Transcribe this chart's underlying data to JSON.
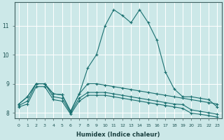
{
  "xlabel": "Humidex (Indice chaleur)",
  "background_color": "#cce8e8",
  "grid_color": "#b0d0d0",
  "line_color": "#1a7070",
  "xlim": [
    -0.5,
    23.5
  ],
  "ylim": [
    7.8,
    11.8
  ],
  "xticks": [
    0,
    1,
    2,
    3,
    4,
    5,
    6,
    7,
    8,
    9,
    10,
    11,
    12,
    13,
    14,
    15,
    16,
    17,
    18,
    19,
    20,
    21,
    22,
    23
  ],
  "yticks": [
    8,
    9,
    10,
    11
  ],
  "line1_x": [
    0,
    1,
    2,
    3,
    4,
    5,
    6,
    7,
    8,
    9,
    10,
    11,
    12,
    13,
    14,
    15,
    16,
    17,
    18,
    19,
    20,
    21,
    22,
    23
  ],
  "line1_y": [
    8.3,
    8.55,
    9.0,
    9.0,
    8.65,
    8.62,
    8.05,
    8.65,
    9.55,
    10.0,
    11.0,
    11.55,
    11.35,
    11.1,
    11.55,
    11.1,
    10.5,
    9.4,
    8.82,
    8.55,
    8.55,
    8.5,
    8.45,
    8.2
  ],
  "line2_x": [
    0,
    1,
    2,
    3,
    4,
    5,
    6,
    7,
    8,
    9,
    10,
    11,
    12,
    13,
    14,
    15,
    16,
    17,
    18,
    19,
    20,
    21,
    22,
    23
  ],
  "line2_y": [
    8.3,
    8.55,
    9.0,
    9.0,
    8.65,
    8.62,
    8.05,
    8.65,
    9.0,
    9.0,
    8.95,
    8.9,
    8.85,
    8.8,
    8.75,
    8.7,
    8.65,
    8.6,
    8.55,
    8.5,
    8.45,
    8.4,
    8.35,
    8.3
  ],
  "line3_x": [
    0,
    1,
    2,
    3,
    4,
    5,
    6,
    7,
    8,
    9,
    10,
    11,
    12,
    13,
    14,
    15,
    16,
    17,
    18,
    19,
    20,
    21,
    22,
    23
  ],
  "line3_y": [
    8.25,
    8.4,
    9.0,
    9.0,
    8.55,
    8.5,
    8.0,
    8.5,
    8.7,
    8.7,
    8.7,
    8.65,
    8.6,
    8.55,
    8.5,
    8.45,
    8.4,
    8.35,
    8.3,
    8.28,
    8.1,
    8.05,
    8.0,
    7.95
  ],
  "line4_x": [
    0,
    1,
    2,
    3,
    4,
    5,
    6,
    7,
    8,
    9,
    10,
    11,
    12,
    13,
    14,
    15,
    16,
    17,
    18,
    19,
    20,
    21,
    22,
    23
  ],
  "line4_y": [
    8.2,
    8.3,
    8.9,
    8.9,
    8.45,
    8.4,
    7.95,
    8.4,
    8.6,
    8.6,
    8.6,
    8.55,
    8.5,
    8.45,
    8.4,
    8.35,
    8.3,
    8.25,
    8.2,
    8.15,
    7.98,
    7.95,
    7.9,
    7.85
  ]
}
